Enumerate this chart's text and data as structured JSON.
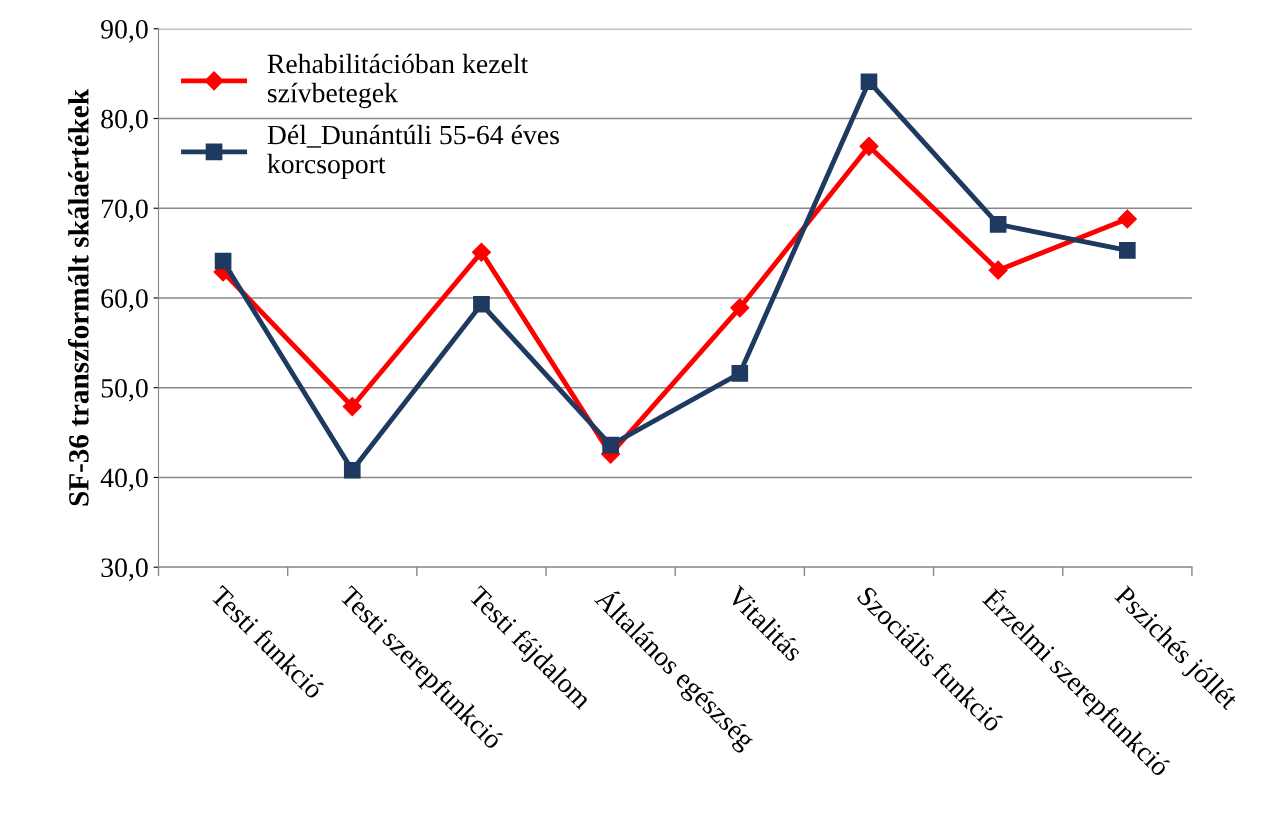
{
  "chart_data": {
    "type": "line",
    "ylabel": "SF-36 transzformált skálaértékek",
    "categories": [
      "Testi funkció",
      "Testi szerepfunkció",
      "Testi fájdalom",
      "Általános egészség",
      "Vitalitás",
      "Szociális funkció",
      "Érzelmi szerepfunkció",
      "Pszichés jóllét"
    ],
    "series": [
      {
        "name": "Rehabilitációban kezelt\nszívbetegek",
        "color": "#ff0000",
        "marker": "diamond",
        "values": [
          62.9,
          47.9,
          65.1,
          42.6,
          58.9,
          76.9,
          63.1,
          68.8
        ]
      },
      {
        "name": "Dél_Dunántúli 55-64 éves\nkorcsoport",
        "color": "#1f3a60",
        "marker": "square",
        "values": [
          64.1,
          40.8,
          59.3,
          43.6,
          51.6,
          84.1,
          68.2,
          65.3
        ]
      }
    ],
    "ylim": [
      30,
      90
    ],
    "yticks": [
      {
        "value": 30,
        "label": "30,0"
      },
      {
        "value": 40,
        "label": "40,0"
      },
      {
        "value": 50,
        "label": "50,0"
      },
      {
        "value": 60,
        "label": "60,0"
      },
      {
        "value": 70,
        "label": "70,0"
      },
      {
        "value": 80,
        "label": "80,0"
      },
      {
        "value": 90,
        "label": "90,0"
      }
    ],
    "grid": "y",
    "legend": "top left",
    "line_style": "solid"
  }
}
